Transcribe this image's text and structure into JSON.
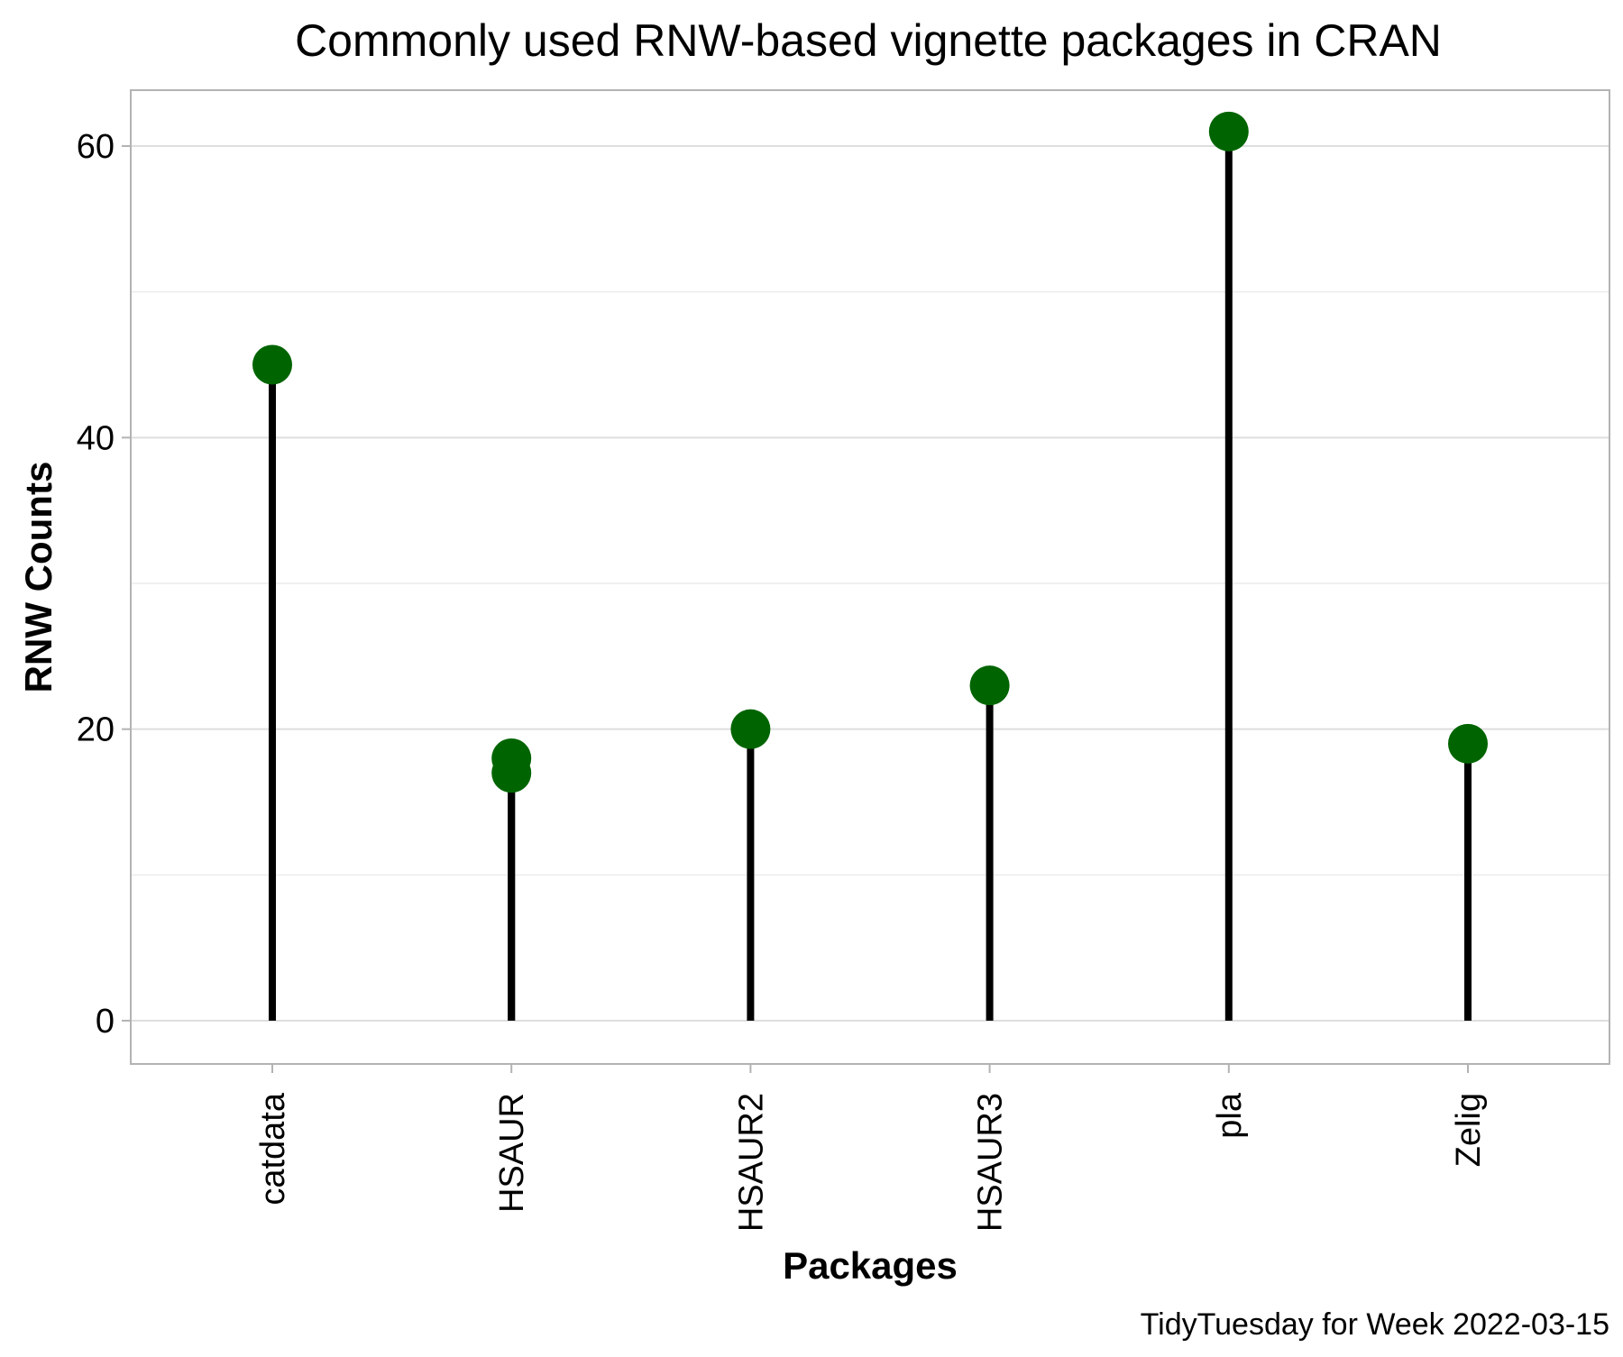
{
  "chart_data": {
    "type": "lollipop",
    "title": "Commonly used RNW-based vignette packages in CRAN",
    "xlabel": "Packages",
    "ylabel": "RNW Counts",
    "caption": "TidyTuesday for Week 2022-03-15",
    "categories": [
      "catdata",
      "HSAUR",
      "HSAUR2",
      "HSAUR3",
      "pla",
      "Zelig"
    ],
    "points": [
      {
        "category": "catdata",
        "value": 45
      },
      {
        "category": "HSAUR",
        "value": 18
      },
      {
        "category": "HSAUR",
        "value": 17
      },
      {
        "category": "HSAUR2",
        "value": 20
      },
      {
        "category": "HSAUR3",
        "value": 23
      },
      {
        "category": "pla",
        "value": 61
      },
      {
        "category": "Zelig",
        "value": 19
      }
    ],
    "ylim": [
      -3,
      64
    ],
    "yticks": [
      0,
      20,
      40,
      60
    ],
    "grid": true,
    "colors": {
      "point": "#006400",
      "stem": "#000000",
      "grid": "#dedede",
      "panel_border": "#b3b3b3"
    }
  }
}
